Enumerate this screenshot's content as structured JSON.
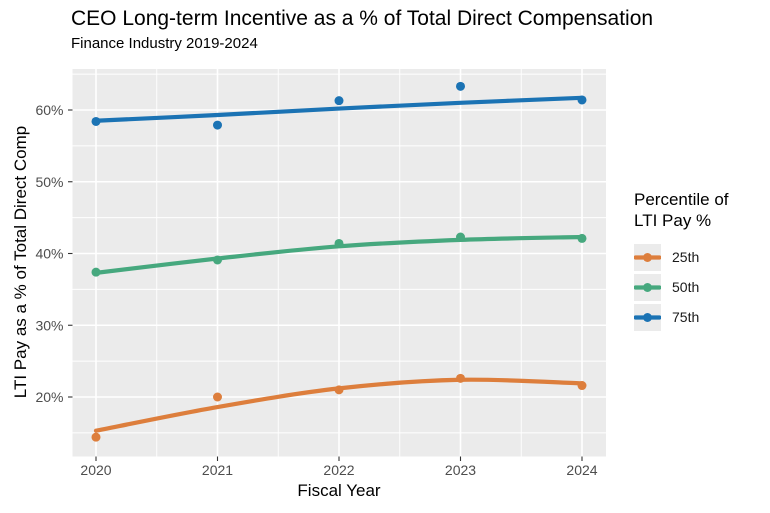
{
  "chart_data": {
    "type": "line",
    "title": "CEO Long-term Incentive as a % of Total Direct Compensation",
    "subtitle": "Finance Industry 2019-2024",
    "xlabel": "Fiscal Year",
    "ylabel": "LTI Pay as a % of Total Direct Comp",
    "x": [
      2020,
      2021,
      2022,
      2023,
      2024
    ],
    "x_tick_labels": [
      "2020",
      "2021",
      "2022",
      "2023",
      "2024"
    ],
    "y_tick_values": [
      20,
      30,
      40,
      50,
      60
    ],
    "y_tick_labels": [
      "20%",
      "30%",
      "40%",
      "50%",
      "60%"
    ],
    "y_minor_tick_values": [
      15,
      25,
      35,
      45,
      55,
      65
    ],
    "ylim": [
      11.8,
      65.8
    ],
    "grid": true,
    "legend": {
      "position": "right",
      "title_line1": "Percentile of",
      "title_line2": "LTI Pay %"
    },
    "panel_background": "#EBEBEB",
    "gridline_color": "#FFFFFF",
    "tick_label_color": "#4D4D4D",
    "tick_mark_color": "#333333",
    "series": [
      {
        "name": "25th",
        "color": "#DD7E3C",
        "points": [
          14.4,
          20.0,
          21.0,
          22.6,
          21.6
        ],
        "trend": [
          15.3,
          18.6,
          21.2,
          22.4,
          21.9
        ]
      },
      {
        "name": "50th",
        "color": "#46A87E",
        "points": [
          37.4,
          39.1,
          41.4,
          42.3,
          42.1
        ],
        "trend": [
          37.3,
          39.3,
          41.0,
          41.9,
          42.3
        ]
      },
      {
        "name": "75th",
        "color": "#1B73B4",
        "points": [
          58.4,
          57.9,
          61.3,
          63.3,
          61.4
        ],
        "trend": [
          58.5,
          59.3,
          60.2,
          61.0,
          61.7
        ]
      }
    ]
  }
}
